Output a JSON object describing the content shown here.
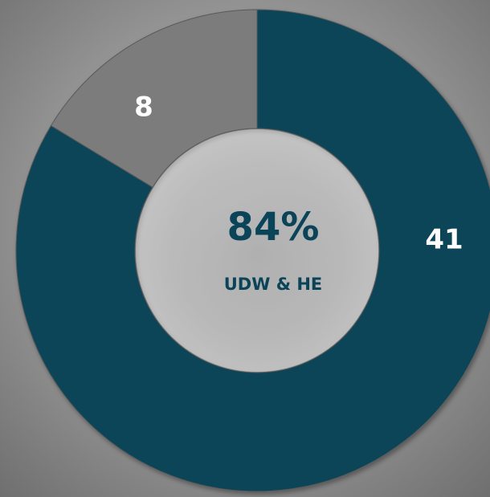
{
  "chart_data": {
    "type": "donut",
    "center_label": "84%",
    "center_sublabel": "UDW & HE",
    "values": [
      41,
      8
    ],
    "colors": [
      "#0b4458",
      "#7b7b7b"
    ],
    "label_color": "#ffffff"
  }
}
